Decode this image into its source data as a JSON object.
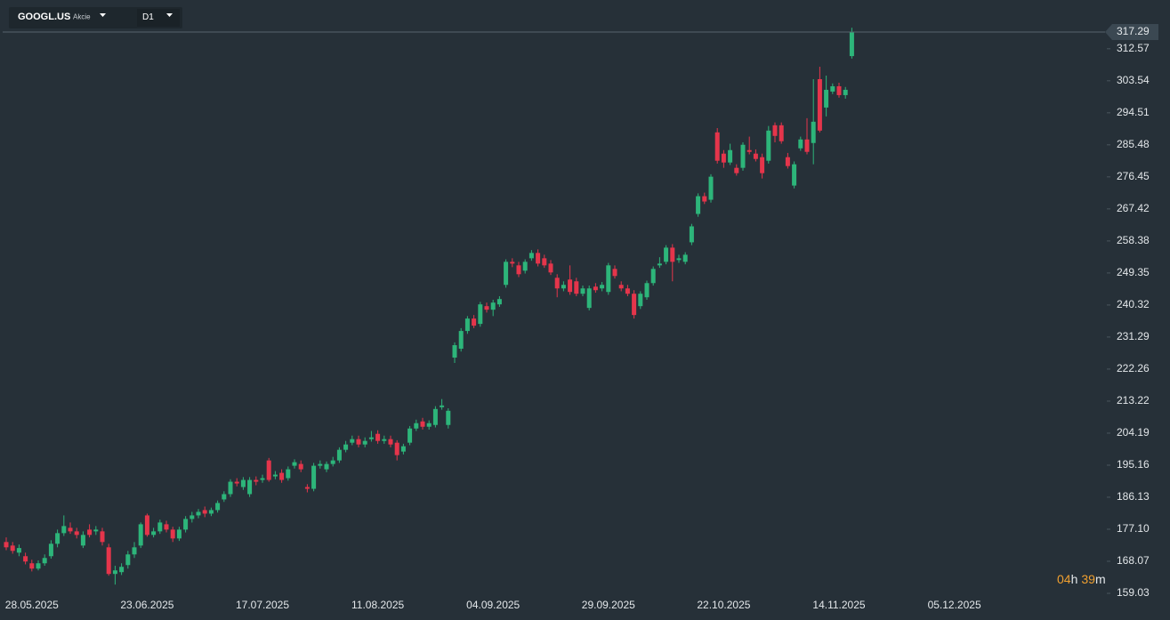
{
  "header": {
    "symbol": "GOOGL.US",
    "instrument_type": "Akcie",
    "timeframe": "D1"
  },
  "countdown": {
    "hours": "04",
    "hours_unit": "h",
    "minutes": "39",
    "minutes_unit": "m"
  },
  "chart_data": {
    "type": "candlestick",
    "up_color": "#2db57a",
    "down_color": "#e5354b",
    "last_price": 317.29,
    "ylim": [
      157.78,
      326.32
    ],
    "yticks": [
      159.03,
      168.07,
      {
        "value": 177.1,
        "label": "177.10"
      },
      186.13,
      195.16,
      204.19,
      213.22,
      222.26,
      231.29,
      240.32,
      249.35,
      258.38,
      267.42,
      276.45,
      285.48,
      294.51,
      303.54,
      312.57
    ],
    "categories": [
      null,
      null,
      null,
      null,
      "28.05.2025",
      null,
      null,
      null,
      null,
      null,
      null,
      null,
      null,
      null,
      null,
      null,
      null,
      null,
      null,
      null,
      null,
      null,
      "23.06.2025",
      null,
      null,
      null,
      null,
      null,
      null,
      null,
      null,
      null,
      null,
      null,
      null,
      null,
      null,
      null,
      null,
      null,
      "17.07.2025",
      null,
      null,
      null,
      null,
      null,
      null,
      null,
      null,
      null,
      null,
      null,
      null,
      null,
      null,
      null,
      null,
      null,
      "11.08.2025",
      null,
      null,
      null,
      null,
      null,
      null,
      null,
      null,
      null,
      null,
      null,
      null,
      null,
      null,
      null,
      null,
      null,
      "04.09.2025",
      null,
      null,
      null,
      null,
      null,
      null,
      null,
      null,
      null,
      null,
      null,
      null,
      null,
      null,
      null,
      null,
      null,
      "29.09.2025",
      null,
      null,
      null,
      null,
      null,
      null,
      null,
      null,
      null,
      null,
      null,
      null,
      null,
      null,
      null,
      null,
      null,
      "22.10.2025",
      null,
      null,
      null,
      null,
      null,
      null,
      null,
      null,
      null,
      null,
      null,
      null,
      null,
      null,
      null,
      null,
      null,
      "14.11.2025",
      null,
      null,
      null,
      null,
      null,
      null,
      null,
      null,
      null,
      null,
      null,
      null,
      null,
      null,
      null,
      null,
      null,
      "05.12.2025"
    ],
    "ohlc": [
      [
        173.5,
        174.8,
        171.2,
        172.0
      ],
      [
        172.5,
        173.5,
        170.2,
        171.0
      ],
      [
        170.5,
        172.8,
        169.5,
        171.8
      ],
      [
        169.5,
        170.5,
        167.2,
        168.0
      ],
      [
        167.5,
        168.5,
        165.2,
        166.0
      ],
      [
        166.0,
        168.3,
        165.5,
        167.5
      ],
      [
        167.5,
        170.0,
        166.8,
        169.0
      ],
      [
        169.5,
        174.0,
        168.8,
        173.0
      ],
      [
        173.0,
        177.0,
        172.0,
        176.0
      ],
      [
        176.0,
        181.0,
        175.2,
        178.0
      ],
      [
        177.5,
        179.0,
        175.8,
        176.5
      ],
      [
        176.5,
        177.5,
        174.5,
        175.5
      ],
      [
        172.5,
        176.5,
        171.8,
        175.5
      ],
      [
        177.0,
        178.5,
        174.8,
        175.5
      ],
      [
        176.5,
        178.0,
        175.5,
        177.0
      ],
      [
        176.5,
        177.5,
        172.5,
        173.5
      ],
      [
        172.0,
        173.0,
        164.0,
        164.5
      ],
      [
        164.5,
        166.8,
        161.5,
        165.5
      ],
      [
        165.0,
        167.5,
        164.2,
        166.5
      ],
      [
        167.0,
        171.0,
        166.0,
        170.0
      ],
      [
        170.0,
        173.5,
        169.0,
        172.0
      ],
      [
        172.5,
        179.0,
        171.8,
        178.5
      ],
      [
        181.0,
        181.5,
        175.0,
        175.5
      ],
      [
        175.5,
        177.5,
        174.8,
        176.5
      ],
      [
        176.5,
        179.8,
        175.8,
        179.0
      ],
      [
        178.5,
        179.5,
        176.2,
        177.0
      ],
      [
        177.0,
        177.8,
        173.5,
        174.5
      ],
      [
        174.5,
        177.8,
        173.8,
        177.0
      ],
      [
        177.0,
        180.8,
        176.2,
        180.0
      ],
      [
        180.0,
        182.0,
        179.0,
        181.0
      ],
      [
        181.0,
        182.8,
        180.2,
        182.0
      ],
      [
        182.5,
        183.5,
        180.5,
        181.5
      ],
      [
        181.5,
        183.2,
        180.8,
        182.5
      ],
      [
        182.5,
        185.2,
        181.8,
        184.5
      ],
      [
        185.5,
        187.8,
        184.8,
        187.0
      ],
      [
        187.0,
        191.2,
        186.2,
        190.5
      ],
      [
        190.5,
        191.5,
        189.2,
        190.0
      ],
      [
        189.0,
        191.8,
        188.2,
        191.0
      ],
      [
        187.0,
        191.8,
        186.2,
        191.0
      ],
      [
        191.0,
        192.0,
        189.5,
        190.5
      ],
      [
        191.0,
        192.5,
        190.2,
        191.5
      ],
      [
        196.5,
        197.2,
        190.5,
        191.0
      ],
      [
        192.0,
        193.5,
        191.2,
        192.5
      ],
      [
        193.0,
        194.0,
        190.2,
        191.0
      ],
      [
        191.5,
        194.8,
        190.8,
        194.0
      ],
      [
        195.0,
        196.8,
        194.2,
        196.0
      ],
      [
        195.5,
        196.5,
        193.2,
        194.0
      ],
      [
        189.0,
        189.8,
        187.5,
        188.5
      ],
      [
        188.5,
        195.8,
        187.8,
        195.0
      ],
      [
        195.0,
        196.5,
        194.2,
        195.5
      ],
      [
        194.0,
        196.2,
        193.2,
        195.5
      ],
      [
        195.5,
        197.5,
        194.8,
        196.5
      ],
      [
        196.5,
        200.2,
        195.8,
        199.5
      ],
      [
        199.5,
        202.0,
        198.8,
        201.0
      ],
      [
        201.5,
        203.5,
        200.8,
        202.5
      ],
      [
        202.5,
        203.5,
        200.2,
        201.0
      ],
      [
        201.0,
        203.0,
        200.2,
        202.0
      ],
      [
        202.5,
        204.8,
        201.8,
        203.0
      ],
      [
        204.0,
        205.0,
        201.2,
        202.0
      ],
      [
        202.0,
        203.5,
        201.2,
        202.5
      ],
      [
        202.5,
        203.5,
        200.2,
        201.0
      ],
      [
        201.5,
        202.2,
        196.5,
        198.0
      ],
      [
        199.0,
        201.2,
        198.2,
        200.5
      ],
      [
        201.5,
        206.2,
        200.8,
        205.5
      ],
      [
        205.5,
        208.0,
        204.8,
        207.0
      ],
      [
        207.5,
        208.5,
        205.2,
        206.0
      ],
      [
        206.0,
        207.8,
        205.2,
        207.0
      ],
      [
        206.5,
        211.8,
        205.8,
        211.0
      ],
      [
        211.5,
        213.8,
        210.8,
        212.0
      ],
      [
        206.5,
        211.2,
        205.5,
        210.5
      ],
      [
        225.5,
        229.8,
        224.0,
        229.0
      ],
      [
        228.0,
        233.8,
        227.2,
        233.0
      ],
      [
        233.0,
        237.2,
        232.2,
        236.5
      ],
      [
        236.5,
        237.5,
        233.8,
        234.5
      ],
      [
        235.0,
        241.2,
        234.2,
        240.5
      ],
      [
        240.0,
        241.0,
        238.2,
        239.0
      ],
      [
        239.0,
        241.8,
        237.2,
        241.0
      ],
      [
        240.5,
        242.8,
        239.8,
        242.0
      ],
      [
        246.0,
        253.2,
        245.2,
        252.5
      ],
      [
        252.5,
        253.5,
        251.0,
        252.0
      ],
      [
        251.5,
        252.5,
        248.2,
        249.0
      ],
      [
        250.0,
        253.2,
        249.2,
        252.5
      ],
      [
        253.5,
        255.8,
        252.8,
        255.0
      ],
      [
        255.0,
        256.0,
        251.2,
        252.0
      ],
      [
        253.5,
        254.5,
        250.8,
        251.5
      ],
      [
        252.0,
        253.0,
        248.8,
        249.5
      ],
      [
        248.0,
        249.0,
        242.5,
        245.0
      ],
      [
        245.0,
        247.0,
        244.2,
        246.0
      ],
      [
        247.5,
        251.5,
        243.2,
        244.0
      ],
      [
        247.0,
        248.0,
        242.8,
        243.5
      ],
      [
        243.5,
        245.8,
        242.8,
        245.0
      ],
      [
        239.5,
        245.8,
        238.8,
        245.0
      ],
      [
        245.5,
        246.5,
        243.8,
        244.5
      ],
      [
        245.0,
        246.8,
        244.2,
        246.0
      ],
      [
        244.0,
        252.2,
        243.2,
        251.5
      ],
      [
        250.5,
        251.5,
        247.8,
        248.5
      ],
      [
        246.0,
        247.0,
        244.2,
        245.0
      ],
      [
        245.0,
        246.0,
        242.8,
        243.5
      ],
      [
        243.5,
        244.5,
        236.5,
        237.5
      ],
      [
        240.0,
        244.2,
        239.2,
        243.5
      ],
      [
        242.5,
        247.2,
        241.8,
        246.5
      ],
      [
        246.5,
        251.2,
        245.8,
        250.5
      ],
      [
        251.5,
        253.8,
        250.8,
        252.0
      ],
      [
        252.5,
        257.2,
        251.8,
        256.5
      ],
      [
        256.5,
        257.5,
        247.0,
        252.5
      ],
      [
        253.0,
        254.5,
        252.2,
        253.5
      ],
      [
        252.5,
        255.2,
        251.8,
        254.5
      ],
      [
        258.0,
        263.2,
        257.2,
        262.5
      ],
      [
        266.0,
        271.8,
        265.2,
        271.0
      ],
      [
        271.0,
        272.0,
        268.8,
        269.5
      ],
      [
        270.0,
        277.2,
        269.2,
        276.5
      ],
      [
        289.0,
        290.2,
        280.2,
        281.0
      ],
      [
        283.0,
        284.0,
        279.0,
        280.5
      ],
      [
        280.5,
        285.8,
        279.8,
        284.0
      ],
      [
        279.0,
        280.0,
        276.8,
        277.5
      ],
      [
        279.0,
        286.2,
        278.2,
        285.5
      ],
      [
        284.0,
        287.8,
        282.8,
        283.5
      ],
      [
        283.0,
        284.2,
        280.8,
        281.5
      ],
      [
        282.0,
        283.0,
        276.0,
        277.5
      ],
      [
        281.0,
        290.8,
        280.2,
        289.5
      ],
      [
        291.0,
        291.8,
        286.2,
        288.0
      ],
      [
        291.0,
        291.8,
        285.8,
        286.5
      ],
      [
        282.0,
        283.2,
        278.8,
        279.5
      ],
      [
        274.0,
        280.8,
        273.2,
        280.0
      ],
      [
        284.5,
        287.8,
        283.8,
        287.0
      ],
      [
        287.0,
        293.0,
        282.8,
        283.5
      ],
      [
        286.0,
        304.0,
        280.0,
        292.0
      ],
      [
        304.0,
        307.5,
        289.0,
        289.5
      ],
      [
        296.0,
        305.0,
        293.5,
        301.0
      ],
      [
        300.5,
        302.8,
        299.8,
        302.0
      ],
      [
        302.0,
        303.0,
        298.8,
        299.5
      ],
      [
        299.5,
        301.8,
        298.5,
        301.0
      ],
      [
        310.5,
        318.5,
        309.8,
        317.29
      ],
      null,
      null,
      null,
      null,
      null,
      null,
      null,
      null,
      null,
      null,
      null,
      null,
      null,
      null,
      null,
      null
    ]
  }
}
